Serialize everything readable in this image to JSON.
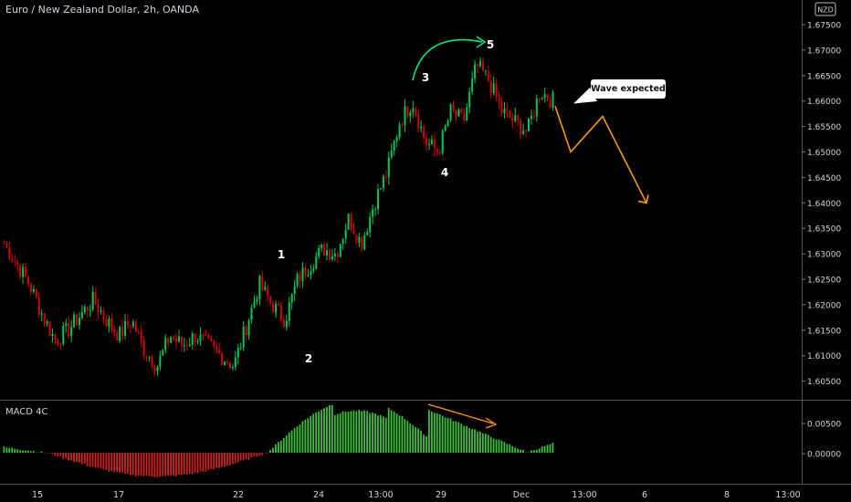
{
  "title": "Euro / New Zealand Dollar, 2h, OANDA",
  "currency_badge": "NZD",
  "indicator_label": "MACD 4C",
  "callout": "Wave expected",
  "wave_labels": [
    "1",
    "2",
    "3",
    "4",
    "5"
  ],
  "colors": {
    "background": "#000000",
    "up": "#00c853",
    "down": "#d50000",
    "arrow_up": "#00e676",
    "projection": "#ff9800",
    "macd_pos": "#3ebf3e",
    "macd_neg": "#cc2222"
  },
  "chart_data": {
    "type": "candlestick",
    "price_axis": {
      "ticks": [
        "1.67500",
        "1.67000",
        "1.66500",
        "1.66000",
        "1.65500",
        "1.65000",
        "1.64500",
        "1.64000",
        "1.63500",
        "1.63000",
        "1.62500",
        "1.62000",
        "1.61500",
        "1.61000",
        "1.60500"
      ],
      "range": [
        1.601,
        1.677
      ]
    },
    "macd_axis": {
      "ticks": [
        "0.00500",
        "0.00000"
      ]
    },
    "x_ticks": [
      "15",
      "17",
      "22",
      "24",
      "13:00",
      "29",
      "Dec",
      "13:00",
      "6",
      "8",
      "13:00"
    ],
    "price_path_approx": [
      1.632,
      1.628,
      1.624,
      1.618,
      1.613,
      1.615,
      1.618,
      1.621,
      1.617,
      1.614,
      1.617,
      1.611,
      1.608,
      1.614,
      1.612,
      1.614,
      1.612,
      1.61,
      1.608,
      1.616,
      1.624,
      1.62,
      1.617,
      1.625,
      1.628,
      1.631,
      1.63,
      1.637,
      1.632,
      1.64,
      1.646,
      1.656,
      1.66,
      1.652,
      1.65,
      1.658,
      1.656,
      1.667,
      1.664,
      1.658,
      1.656,
      1.654,
      1.662,
      1.66
    ],
    "projection_path": [
      1.659,
      1.65,
      1.657,
      1.64
    ]
  }
}
